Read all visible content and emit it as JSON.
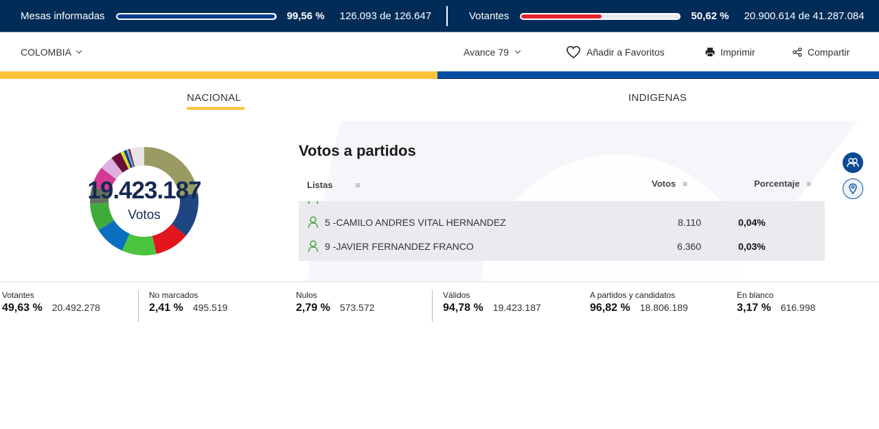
{
  "topbar": {
    "mesas": {
      "label": "Mesas informadas",
      "pct": "99,56 %",
      "count": "126.093 de 126.647",
      "fill": 99.56,
      "color": "#0b3b8f"
    },
    "votantes": {
      "label": "Votantes",
      "pct": "50,62 %",
      "count": "20.900.614 de 41.287.084",
      "fill": 50.62,
      "color": "#e0252f"
    }
  },
  "nav": {
    "region": "COLOMBIA",
    "avance": "Avance 79",
    "favoritos": "Añadir a Favoritos",
    "imprimir": "Imprimir",
    "compartir": "Compartir"
  },
  "tabs": [
    {
      "label": "NACIONAL",
      "active": true
    },
    {
      "label": "INDIGENAS",
      "active": false
    }
  ],
  "donut": {
    "total": "19.423.187",
    "sub": "Votos",
    "segments": [
      {
        "color": "#9a9a63",
        "value": 22
      },
      {
        "color": "#1f4682",
        "value": 13
      },
      {
        "color": "#e3151d",
        "value": 10
      },
      {
        "color": "#4ac43d",
        "value": 10
      },
      {
        "color": "#0b6fbf",
        "value": 9
      },
      {
        "color": "#3fab3a",
        "value": 8
      },
      {
        "color": "#66705e",
        "value": 5
      },
      {
        "color": "#d33b92",
        "value": 6
      },
      {
        "color": "#deb0e2",
        "value": 4
      },
      {
        "color": "#6b0f3a",
        "value": 3
      },
      {
        "color": "#d8e022",
        "value": 1
      },
      {
        "color": "#1a3a8c",
        "value": 0.8
      },
      {
        "color": "#58b6e0",
        "value": 0.6
      },
      {
        "color": "#8a1a3a",
        "value": 0.5
      },
      {
        "color": "#e6e6e6",
        "value": 4.1
      }
    ]
  },
  "panel": {
    "title": "Votos a partidos",
    "columns": {
      "listas": "Listas",
      "votos": "Votos",
      "porcentaje": "Porcentaje"
    },
    "rows": [
      {
        "name": "5 -CAMILO ANDRES VITAL HERNANDEZ",
        "votes": "8.110",
        "pct": "0,04%"
      },
      {
        "name": "9 -JAVIER FERNANDEZ FRANCO",
        "votes": "6.360",
        "pct": "0,03%"
      }
    ]
  },
  "side_buttons": {
    "candidatos_icon": "users-icon",
    "ubicacion_icon": "map-pin-icon"
  },
  "footer": [
    {
      "label": "Votantes",
      "pct": "49,63 %",
      "value": "20.492.278"
    },
    {
      "label": "No marcados",
      "pct": "2,41 %",
      "value": "495.519"
    },
    {
      "label": "Nulos",
      "pct": "2,79 %",
      "value": "573.572"
    },
    {
      "label": "Válidos",
      "pct": "94,78 %",
      "value": "19.423.187"
    },
    {
      "label": "A partidos y candidatos",
      "pct": "96,82 %",
      "value": "18.806.189"
    },
    {
      "label": "En blanco",
      "pct": "3,17 %",
      "value": "616.998"
    }
  ],
  "colors": {
    "navy": "#022c58",
    "yellow": "#fcc33b",
    "blue": "#034ea2",
    "green": "#3fab3a"
  }
}
